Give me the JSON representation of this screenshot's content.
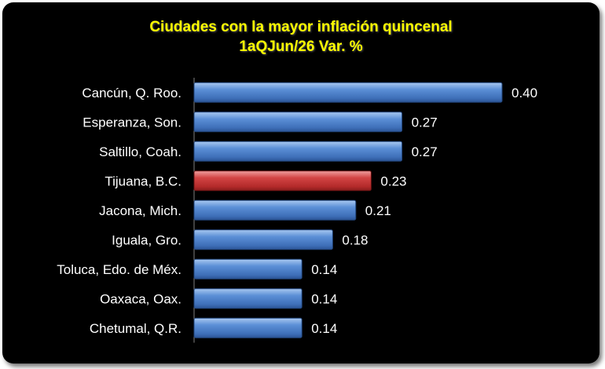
{
  "chart_data": {
    "type": "bar",
    "orientation": "horizontal",
    "title": "Ciudades con la mayor inflación quincenal",
    "subtitle": "1aQJun/26 Var. %",
    "categories": [
      "Cancún, Q. Roo.",
      "Esperanza, Son.",
      "Saltillo, Coah.",
      "Tijuana, B.C.",
      "Jacona, Mich.",
      "Iguala, Gro.",
      "Toluca, Edo. de Méx.",
      "Oaxaca, Oax.",
      "Chetumal, Q.R."
    ],
    "values": [
      0.4,
      0.27,
      0.27,
      0.23,
      0.21,
      0.18,
      0.14,
      0.14,
      0.14
    ],
    "value_labels": [
      "0.40",
      "0.27",
      "0.27",
      "0.23",
      "0.21",
      "0.18",
      "0.14",
      "0.14",
      "0.14"
    ],
    "highlight": [
      false,
      false,
      false,
      true,
      false,
      false,
      false,
      false,
      false
    ],
    "colors": {
      "bar": "#4a7fcc",
      "highlight": "#c0312f",
      "background": "#000000",
      "title": "#ffff00",
      "text": "#ffffff"
    },
    "xlim": [
      0,
      0.4
    ],
    "grid": false,
    "legend": "none"
  }
}
